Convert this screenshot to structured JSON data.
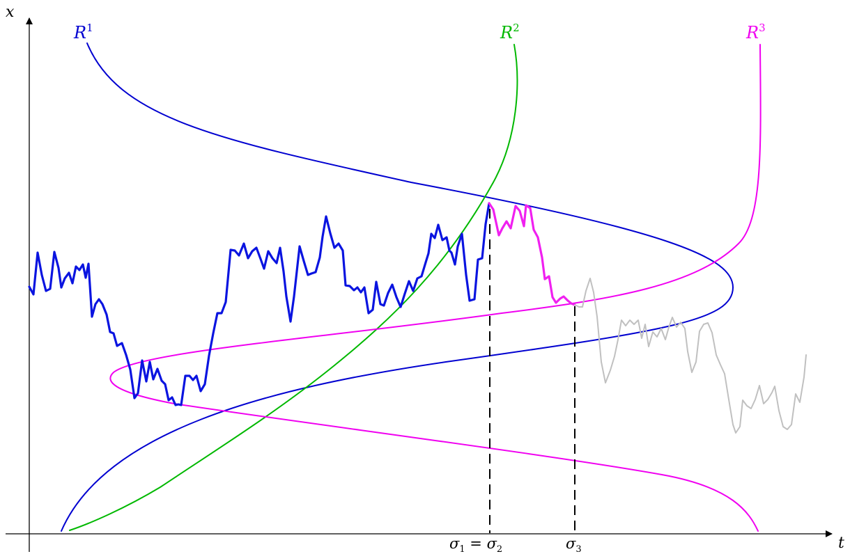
{
  "axes": {
    "x_axis_label": "t",
    "y_axis_label": "x"
  },
  "curves": [
    {
      "name": "R1",
      "label_script": "R",
      "label_superscript": "1",
      "color": "#0000d0"
    },
    {
      "name": "R2",
      "label_script": "R",
      "label_superscript": "2",
      "color": "#00b800"
    },
    {
      "name": "R3",
      "label_script": "R",
      "label_superscript": "3",
      "color": "#f000f0"
    }
  ],
  "stopping_times": {
    "first": {
      "text": "σ",
      "sub1": "1",
      "equals": " = ",
      "text2": "σ",
      "sub2": "2"
    },
    "second": {
      "text": "σ",
      "sub": "3"
    }
  },
  "path_colors": {
    "first_segment": "#0a14e0",
    "second_segment": "#f020f0",
    "remainder": "#c0c0c0"
  }
}
